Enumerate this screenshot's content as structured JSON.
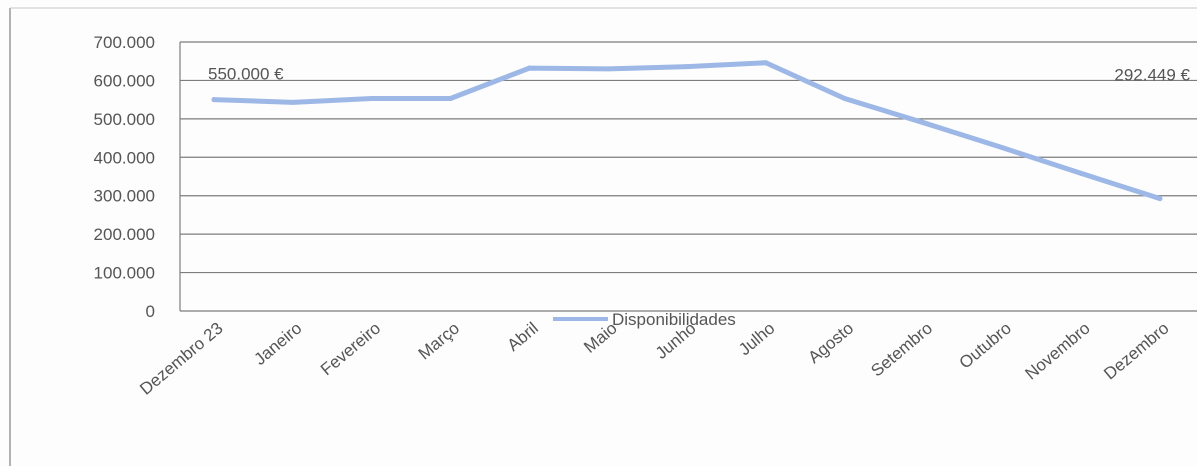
{
  "chart_data": {
    "type": "line",
    "title": "",
    "xlabel": "",
    "ylabel": "",
    "categories": [
      "Dezembro 23",
      "Janeiro",
      "Fevereiro",
      "Março",
      "Abril",
      "Maio",
      "Junho",
      "Julho",
      "Agosto",
      "Setembro",
      "Outubro",
      "Novembro",
      "Dezembro"
    ],
    "y_ticks": [
      "0",
      "100.000",
      "200.000",
      "300.000",
      "400.000",
      "500.000",
      "600.000",
      "700.000"
    ],
    "ylim": [
      0,
      700000
    ],
    "grid": true,
    "legend_position": "bottom-center",
    "series": [
      {
        "name": "Disponibilidades",
        "color": "#9db8e6",
        "values": [
          550000,
          543000,
          553000,
          553000,
          632000,
          630000,
          636000,
          646000,
          553000,
          490000,
          425000,
          358000,
          292449
        ]
      }
    ],
    "data_labels": [
      {
        "index": 0,
        "text": "550.000 €"
      },
      {
        "index": 12,
        "text": "292.449 €"
      }
    ]
  }
}
